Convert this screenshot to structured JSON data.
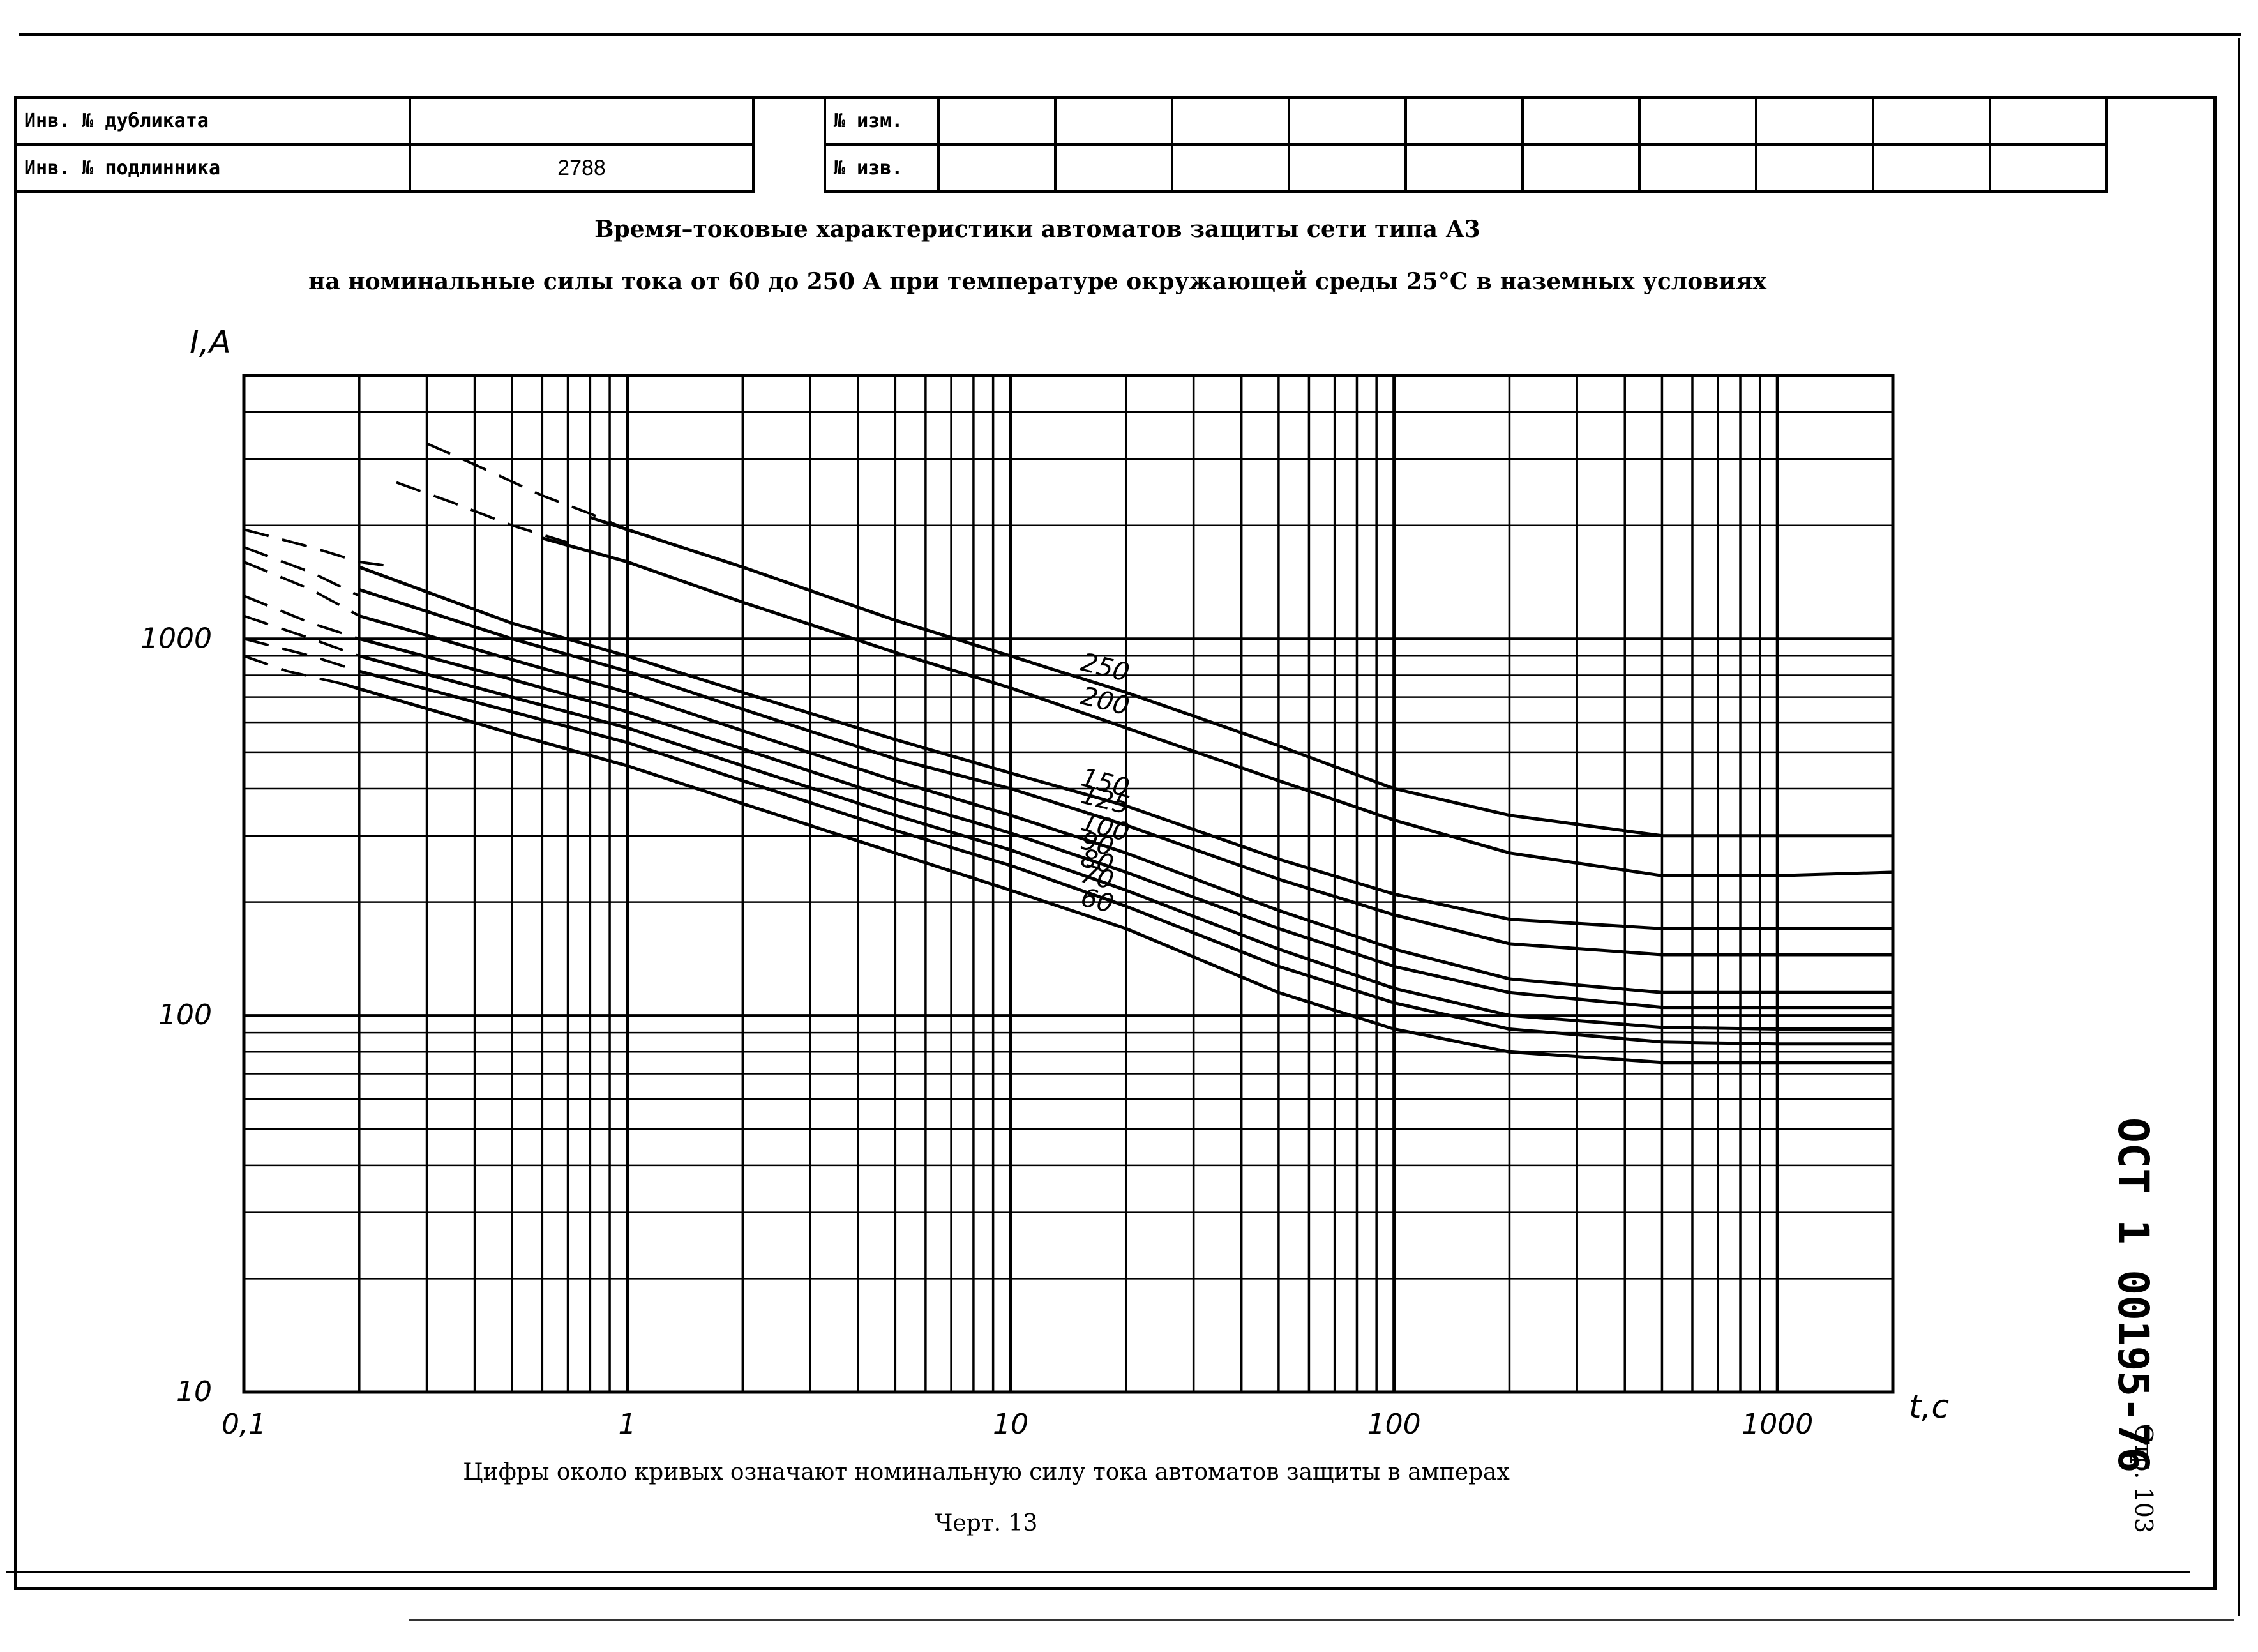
{
  "stamps": {
    "left": {
      "row1_label": "Инв. № дубликата",
      "row1_value": "",
      "row2_label": "Инв. № подлинника",
      "row2_value": "2788"
    },
    "right": {
      "row1_label": "№ изм.",
      "row2_label": "№ изв."
    }
  },
  "doc": {
    "code": "ОСТ 1 00195-76",
    "page": "Стр. 103"
  },
  "chart_data": {
    "type": "line",
    "title": "Время–токовые характеристики автоматов защиты сети типа А3",
    "subtitle": "на номинальные силы тока от 60 до 250 А при температуре окружающей среды 25°С в наземных условиях",
    "xlabel": "t,c",
    "ylabel": "I,A",
    "xscale": "log",
    "yscale": "log",
    "xlim": [
      0.1,
      2000
    ],
    "ylim": [
      10,
      5000
    ],
    "x_ticks": [
      "0,1",
      "1",
      "10",
      "100",
      "1000"
    ],
    "y_ticks": [
      "10",
      "100",
      "1000"
    ],
    "grid": true,
    "note": "Цифры около кривых означают номинальную силу тока автоматов защиты в амперах",
    "figure_number": "Черт. 13",
    "series": [
      {
        "name": "250",
        "dashed": {
          "x": [
            0.3,
            0.4,
            0.6,
            0.8,
            1.0
          ],
          "y": [
            3300,
            2900,
            2400,
            2150,
            1950
          ]
        },
        "x": [
          0.8,
          1,
          2,
          5,
          10,
          20,
          50,
          100,
          200,
          500,
          1000,
          2000
        ],
        "y": [
          2100,
          1950,
          1550,
          1120,
          900,
          720,
          520,
          400,
          340,
          300,
          300,
          300
        ]
      },
      {
        "name": "200",
        "dashed": {
          "x": [
            0.25,
            0.35,
            0.5,
            0.7
          ],
          "y": [
            2600,
            2300,
            2000,
            1800
          ]
        },
        "x": [
          0.6,
          1,
          2,
          5,
          10,
          20,
          50,
          100,
          200,
          500,
          1000,
          2000
        ],
        "y": [
          1850,
          1600,
          1250,
          920,
          740,
          580,
          420,
          330,
          270,
          235,
          235,
          240
        ]
      },
      {
        "name": "150",
        "dashed": {
          "x": [
            0.1,
            0.15,
            0.2,
            0.25
          ],
          "y": [
            1950,
            1750,
            1600,
            1550
          ]
        },
        "x": [
          0.2,
          0.5,
          1,
          2,
          5,
          10,
          20,
          50,
          100,
          200,
          500,
          1000,
          2000
        ],
        "y": [
          1550,
          1100,
          900,
          720,
          540,
          440,
          360,
          260,
          210,
          180,
          170,
          170,
          170
        ]
      },
      {
        "name": "125",
        "dashed": {
          "x": [
            0.1,
            0.15,
            0.2
          ],
          "y": [
            1750,
            1500,
            1300
          ]
        },
        "x": [
          0.2,
          0.5,
          1,
          2,
          5,
          10,
          20,
          50,
          100,
          200,
          500,
          1000,
          2000
        ],
        "y": [
          1350,
          1000,
          820,
          650,
          480,
          400,
          320,
          230,
          185,
          155,
          145,
          145,
          145
        ]
      },
      {
        "name": "100",
        "dashed": {
          "x": [
            0.1,
            0.15,
            0.2
          ],
          "y": [
            1600,
            1350,
            1150
          ]
        },
        "x": [
          0.2,
          0.5,
          1,
          2,
          5,
          10,
          20,
          50,
          100,
          200,
          500,
          1000,
          2000
        ],
        "y": [
          1150,
          880,
          720,
          570,
          420,
          340,
          270,
          190,
          150,
          125,
          115,
          115,
          115
        ]
      },
      {
        "name": "90",
        "dashed": {
          "x": [
            0.1,
            0.15,
            0.2
          ],
          "y": [
            1300,
            1100,
            1000
          ]
        },
        "x": [
          0.2,
          0.5,
          1,
          2,
          5,
          10,
          20,
          50,
          100,
          200,
          500,
          1000,
          2000
        ],
        "y": [
          1000,
          780,
          640,
          510,
          375,
          305,
          240,
          170,
          135,
          115,
          105,
          105,
          105
        ]
      },
      {
        "name": "80",
        "dashed": {
          "x": [
            0.1,
            0.15,
            0.2
          ],
          "y": [
            1150,
            1000,
            900
          ]
        },
        "x": [
          0.2,
          0.5,
          1,
          2,
          5,
          10,
          20,
          50,
          100,
          200,
          500,
          1000,
          2000
        ],
        "y": [
          900,
          700,
          580,
          460,
          340,
          275,
          215,
          150,
          118,
          100,
          93,
          92,
          92
        ]
      },
      {
        "name": "70",
        "dashed": {
          "x": [
            0.1,
            0.15,
            0.2
          ],
          "y": [
            1000,
            900,
            820
          ]
        },
        "x": [
          0.2,
          0.5,
          1,
          2,
          5,
          10,
          20,
          50,
          100,
          200,
          500,
          1000,
          2000
        ],
        "y": [
          820,
          640,
          530,
          420,
          310,
          250,
          195,
          135,
          108,
          92,
          85,
          84,
          84
        ]
      },
      {
        "name": "60",
        "dashed": {
          "x": [
            0.1,
            0.13,
            0.18
          ],
          "y": [
            900,
            820,
            760
          ]
        },
        "x": [
          0.18,
          0.5,
          1,
          2,
          5,
          10,
          20,
          50,
          100,
          200,
          500,
          1000,
          2000
        ],
        "y": [
          760,
          560,
          460,
          365,
          270,
          215,
          170,
          115,
          92,
          80,
          75,
          75,
          75
        ]
      }
    ]
  }
}
